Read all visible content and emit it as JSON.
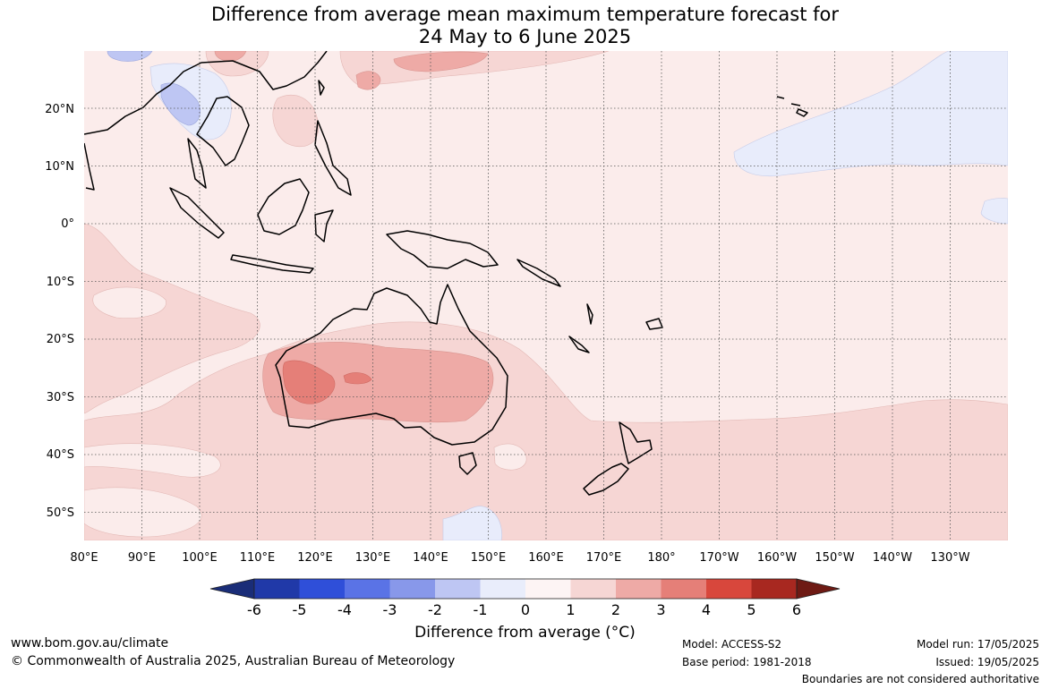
{
  "title": {
    "line1": "Difference from average mean maximum temperature forecast for",
    "line2": "24 May to 6 June 2025"
  },
  "map": {
    "lat_labels": [
      "20°N",
      "10°N",
      "0°",
      "10°S",
      "20°S",
      "30°S",
      "40°S",
      "50°S"
    ],
    "lon_labels": [
      "80°E",
      "90°E",
      "100°E",
      "110°E",
      "120°E",
      "130°E",
      "140°E",
      "150°E",
      "160°E",
      "170°E",
      "180°",
      "170°W",
      "160°W",
      "150°W",
      "140°W",
      "130°W"
    ],
    "lon_range": [
      80,
      240
    ],
    "lat_range": [
      -55,
      30
    ]
  },
  "colorbar": {
    "ticks": [
      "-6",
      "-5",
      "-4",
      "-3",
      "-2",
      "-1",
      "0",
      "1",
      "2",
      "3",
      "4",
      "5",
      "6"
    ],
    "colors": [
      "#2039a8",
      "#2f4fd9",
      "#5a73e6",
      "#8898ea",
      "#bec6f3",
      "#e9edfb",
      "#fdf4f4",
      "#f6d6d4",
      "#eeaaa6",
      "#e57f78",
      "#d8473c",
      "#a82820"
    ],
    "under_color": "#1a2d78",
    "over_color": "#6e1a14",
    "label": "Difference from average (°C)"
  },
  "footer": {
    "website": "www.bom.gov.au/climate",
    "copyright": "© Commonwealth of Australia 2025, Australian Bureau of Meteorology",
    "model": "Model: ACCESS-S2",
    "base_period": "Base period: 1981-2018",
    "model_run": "Model run: 17/05/2025",
    "issued": "Issued: 19/05/2025",
    "boundaries": "Boundaries are not considered authoritative"
  }
}
